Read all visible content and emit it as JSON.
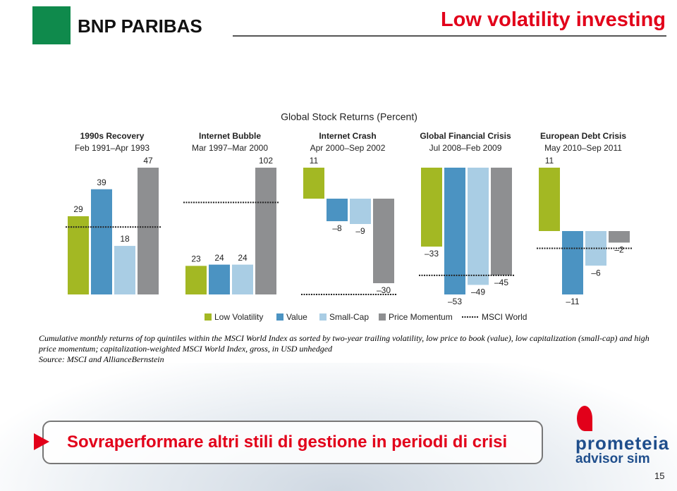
{
  "header": {
    "brand": "BNP PARIBAS",
    "title": "Low volatility investing"
  },
  "chart_data": {
    "type": "bar",
    "title": "Global Stock Returns (Percent)",
    "categories": [
      "1990s Recovery",
      "Internet Bubble",
      "Internet Crash",
      "Global Financial Crisis",
      "European Debt Crisis"
    ],
    "periods": [
      "Feb 1991–Apr 1993",
      "Mar 1997–Mar 2000",
      "Apr 2000–Sep 2002",
      "Jul 2008–Feb 2009",
      "May 2010–Sep 2011"
    ],
    "series": [
      {
        "name": "Low Volatility",
        "color": "#a3b823",
        "values": [
          29,
          23,
          11,
          -33,
          11
        ],
        "value_labels": [
          "29",
          "23",
          "11",
          "–33",
          "11"
        ]
      },
      {
        "name": "Value",
        "color": "#4b93c2",
        "values": [
          39,
          24,
          -8,
          -53,
          -11
        ],
        "value_labels": [
          "39",
          "24",
          "–8",
          "–53",
          "–11"
        ]
      },
      {
        "name": "Small-Cap",
        "color": "#a9cde4",
        "values": [
          18,
          24,
          -9,
          -49,
          -6
        ],
        "value_labels": [
          "18",
          "24",
          "–9",
          "–49",
          "–6"
        ]
      },
      {
        "name": "Price Momentum",
        "color": "#8e8f91",
        "values": [
          47,
          102,
          -30,
          -45,
          -2
        ],
        "value_labels": [
          "47",
          "102",
          "–30",
          "–45",
          "–2"
        ]
      },
      {
        "name": "MSCI World",
        "color": "#222222",
        "style": "dotted",
        "values": [
          25,
          74,
          -34,
          -45,
          -3
        ]
      }
    ]
  },
  "caption": {
    "note": "Cumulative monthly returns of top quintiles within the MSCI World Index as sorted by two-year trailing volatility, low price to book (value), low capitalization (small-cap) and high price momentum; capitalization-weighted MSCI World Index, gross, in USD unhedged",
    "source": "Source: MSCI and AllianceBernstein"
  },
  "banner": "Sovraperformare altri stili di gestione in periodi di crisi",
  "footer": {
    "brand": "prometeia",
    "sub": "advisor sim",
    "page": "15"
  }
}
